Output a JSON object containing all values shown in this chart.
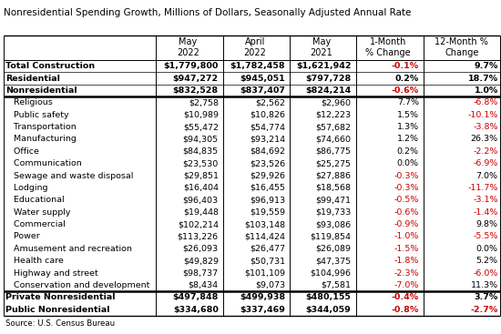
{
  "title": "Nonresidential Spending Growth, Millions of Dollars, Seasonally Adjusted Annual Rate",
  "source": "Source: U.S. Census Bureau",
  "col_headers": [
    "",
    "May\n2022",
    "April\n2022",
    "May\n2021",
    "1-Month\n% Change",
    "12-Month %\nChange"
  ],
  "rows": [
    {
      "label": "Total Construction",
      "may22": "$1,779,800",
      "apr22": "$1,782,458",
      "may21": "$1,621,942",
      "m1": "-0.1%",
      "m12": "9.7%",
      "m1_red": true,
      "m12_red": false
    },
    {
      "label": "Residential",
      "may22": "$947,272",
      "apr22": "$945,051",
      "may21": "$797,728",
      "m1": "0.2%",
      "m12": "18.7%",
      "m1_red": false,
      "m12_red": false
    },
    {
      "label": "Nonresidential",
      "may22": "$832,528",
      "apr22": "$837,407",
      "may21": "$824,214",
      "m1": "-0.6%",
      "m12": "1.0%",
      "m1_red": true,
      "m12_red": false
    },
    {
      "label": "   Religious",
      "may22": "$2,758",
      "apr22": "$2,562",
      "may21": "$2,960",
      "m1": "7.7%",
      "m12": "-6.8%",
      "m1_red": false,
      "m12_red": true
    },
    {
      "label": "   Public safety",
      "may22": "$10,989",
      "apr22": "$10,826",
      "may21": "$12,223",
      "m1": "1.5%",
      "m12": "-10.1%",
      "m1_red": false,
      "m12_red": true
    },
    {
      "label": "   Transportation",
      "may22": "$55,472",
      "apr22": "$54,774",
      "may21": "$57,682",
      "m1": "1.3%",
      "m12": "-3.8%",
      "m1_red": false,
      "m12_red": true
    },
    {
      "label": "   Manufacturing",
      "may22": "$94,305",
      "apr22": "$93,214",
      "may21": "$74,660",
      "m1": "1.2%",
      "m12": "26.3%",
      "m1_red": false,
      "m12_red": false
    },
    {
      "label": "   Office",
      "may22": "$84,835",
      "apr22": "$84,692",
      "may21": "$86,775",
      "m1": "0.2%",
      "m12": "-2.2%",
      "m1_red": false,
      "m12_red": true
    },
    {
      "label": "   Communication",
      "may22": "$23,530",
      "apr22": "$23,526",
      "may21": "$25,275",
      "m1": "0.0%",
      "m12": "-6.9%",
      "m1_red": false,
      "m12_red": true
    },
    {
      "label": "   Sewage and waste disposal",
      "may22": "$29,851",
      "apr22": "$29,926",
      "may21": "$27,886",
      "m1": "-0.3%",
      "m12": "7.0%",
      "m1_red": true,
      "m12_red": false
    },
    {
      "label": "   Lodging",
      "may22": "$16,404",
      "apr22": "$16,455",
      "may21": "$18,568",
      "m1": "-0.3%",
      "m12": "-11.7%",
      "m1_red": true,
      "m12_red": true
    },
    {
      "label": "   Educational",
      "may22": "$96,403",
      "apr22": "$96,913",
      "may21": "$99,471",
      "m1": "-0.5%",
      "m12": "-3.1%",
      "m1_red": true,
      "m12_red": true
    },
    {
      "label": "   Water supply",
      "may22": "$19,448",
      "apr22": "$19,559",
      "may21": "$19,733",
      "m1": "-0.6%",
      "m12": "-1.4%",
      "m1_red": true,
      "m12_red": true
    },
    {
      "label": "   Commercial",
      "may22": "$102,214",
      "apr22": "$103,148",
      "may21": "$93,086",
      "m1": "-0.9%",
      "m12": "9.8%",
      "m1_red": true,
      "m12_red": false
    },
    {
      "label": "   Power",
      "may22": "$113,226",
      "apr22": "$114,424",
      "may21": "$119,854",
      "m1": "-1.0%",
      "m12": "-5.5%",
      "m1_red": true,
      "m12_red": true
    },
    {
      "label": "   Amusement and recreation",
      "may22": "$26,093",
      "apr22": "$26,477",
      "may21": "$26,089",
      "m1": "-1.5%",
      "m12": "0.0%",
      "m1_red": true,
      "m12_red": false
    },
    {
      "label": "   Health care",
      "may22": "$49,829",
      "apr22": "$50,731",
      "may21": "$47,375",
      "m1": "-1.8%",
      "m12": "5.2%",
      "m1_red": true,
      "m12_red": false
    },
    {
      "label": "   Highway and street",
      "may22": "$98,737",
      "apr22": "$101,109",
      "may21": "$104,996",
      "m1": "-2.3%",
      "m12": "-6.0%",
      "m1_red": true,
      "m12_red": true
    },
    {
      "label": "   Conservation and development",
      "may22": "$8,434",
      "apr22": "$9,073",
      "may21": "$7,581",
      "m1": "-7.0%",
      "m12": "11.3%",
      "m1_red": true,
      "m12_red": false
    },
    {
      "label": "Private Nonresidential",
      "may22": "$497,848",
      "apr22": "$499,938",
      "may21": "$480,155",
      "m1": "-0.4%",
      "m12": "3.7%",
      "m1_red": true,
      "m12_red": false
    },
    {
      "label": "Public Nonresidential",
      "may22": "$334,680",
      "apr22": "$337,469",
      "may21": "$344,059",
      "m1": "-0.8%",
      "m12": "-2.7%",
      "m1_red": true,
      "m12_red": true
    }
  ],
  "bold_rows": [
    0,
    1,
    2,
    19,
    20
  ],
  "thick_border_after": [
    2,
    18
  ],
  "thin_border_after": [
    0,
    1
  ],
  "bg_color": "#ffffff",
  "text_color": "#000000",
  "red_color": "#cc0000",
  "font_size": 6.8,
  "header_font_size": 7.0,
  "title_font_size": 7.5
}
